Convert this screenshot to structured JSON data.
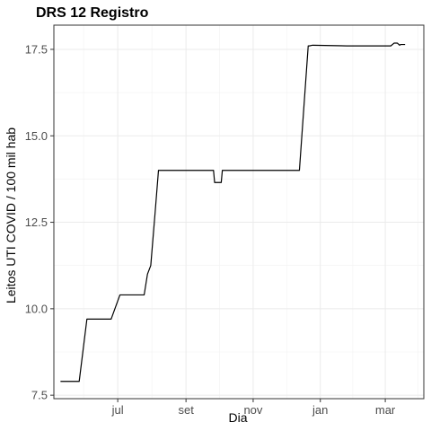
{
  "chart_data": {
    "type": "line",
    "title": "DRS 12 Registro",
    "xlabel": "Dia",
    "ylabel": "Leitos UTI COVID / 100 mil hab",
    "x_ticks": [
      "jul",
      "set",
      "nov",
      "jan",
      "mar"
    ],
    "x_tick_dates": [
      "2020-07-01",
      "2020-09-01",
      "2020-11-01",
      "2021-01-01",
      "2021-03-01"
    ],
    "xlim": [
      "2020-05-04",
      "2021-04-05"
    ],
    "y_ticks": [
      "7.5",
      "10.0",
      "12.5",
      "15.0",
      "17.5"
    ],
    "y_tick_values": [
      7.5,
      10.0,
      12.5,
      15.0,
      17.5
    ],
    "ylim": [
      7.4,
      18.2
    ],
    "grid": true,
    "line_color": "#000000",
    "series": [
      {
        "x": [
          "2020-05-10",
          "2020-05-27",
          "2020-06-03",
          "2020-06-25",
          "2020-07-03",
          "2020-07-25",
          "2020-07-28",
          "2020-07-31",
          "2020-08-04",
          "2020-08-07",
          "2020-08-08",
          "2020-09-26",
          "2020-09-27",
          "2020-10-03",
          "2020-10-04",
          "2020-12-13",
          "2020-12-21",
          "2020-12-22",
          "2020-12-25",
          "2021-01-25",
          "2021-03-06",
          "2021-03-09",
          "2021-03-12",
          "2021-03-14",
          "2021-03-15",
          "2021-03-19"
        ],
        "y": [
          7.9,
          7.9,
          9.7,
          9.7,
          10.4,
          10.4,
          11.0,
          11.25,
          12.8,
          14.0,
          14.0,
          14.0,
          13.65,
          13.65,
          14.0,
          14.0,
          17.6,
          17.6,
          17.62,
          17.6,
          17.6,
          17.68,
          17.68,
          17.62,
          17.64,
          17.64
        ]
      }
    ]
  }
}
